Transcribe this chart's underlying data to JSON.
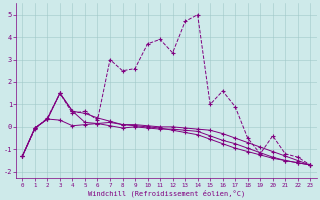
{
  "background_color": "#ceeaea",
  "line_color": "#800080",
  "hours": [
    0,
    1,
    2,
    3,
    4,
    5,
    6,
    7,
    8,
    9,
    10,
    11,
    12,
    13,
    14,
    15,
    16,
    17,
    18,
    19,
    20,
    21,
    22,
    23
  ],
  "series1": [
    -1.3,
    -0.1,
    0.4,
    1.5,
    0.6,
    0.7,
    0.3,
    3.0,
    2.5,
    2.6,
    3.7,
    3.9,
    3.3,
    4.7,
    5.0,
    1.0,
    1.6,
    0.9,
    -0.5,
    -1.2,
    -0.4,
    -1.2,
    -1.35,
    -1.7
  ],
  "series2": [
    -1.3,
    -0.05,
    0.35,
    1.5,
    0.7,
    0.2,
    0.15,
    0.2,
    0.1,
    0.1,
    0.05,
    0.0,
    0.0,
    -0.05,
    -0.1,
    -0.15,
    -0.3,
    -0.5,
    -0.7,
    -0.9,
    -1.1,
    -1.3,
    -1.5,
    -1.7
  ],
  "series3": [
    -1.3,
    -0.05,
    0.35,
    0.3,
    0.05,
    0.1,
    0.15,
    0.05,
    -0.05,
    0.0,
    -0.05,
    -0.1,
    -0.1,
    -0.15,
    -0.2,
    -0.4,
    -0.6,
    -0.75,
    -0.95,
    -1.15,
    -1.35,
    -1.5,
    -1.6,
    -1.7
  ],
  "series4": [
    -1.3,
    -0.05,
    0.35,
    1.5,
    0.7,
    0.6,
    0.4,
    0.25,
    0.1,
    0.05,
    0.0,
    -0.05,
    -0.15,
    -0.25,
    -0.35,
    -0.55,
    -0.75,
    -0.95,
    -1.1,
    -1.25,
    -1.4,
    -1.5,
    -1.6,
    -1.7
  ],
  "ylim": [
    -2.3,
    5.5
  ],
  "yticks": [
    -2,
    -1,
    0,
    1,
    2,
    3,
    4,
    5
  ],
  "xlabel": "Windchill (Refroidissement éolien,°C)"
}
